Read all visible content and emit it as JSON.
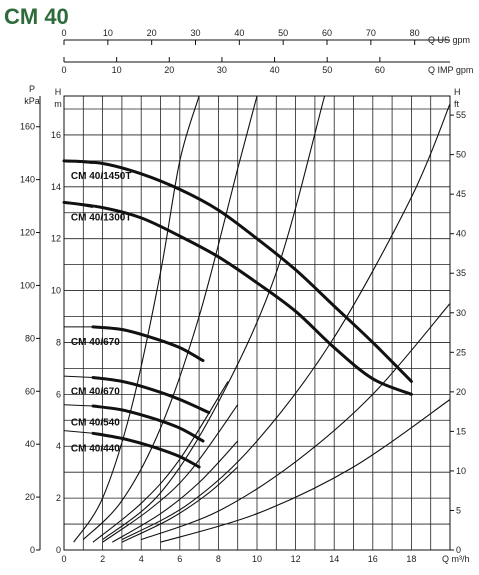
{
  "chart_data": {
    "type": "line",
    "title": "CM 40",
    "x_axis_bottom": {
      "label": "Q m³/h",
      "ticks": [
        0,
        2,
        4,
        6,
        8,
        10,
        12,
        14,
        16,
        18
      ],
      "range": [
        0,
        20
      ]
    },
    "x_axis_top_us": {
      "label": "Q US gpm",
      "ticks": [
        0,
        10,
        20,
        30,
        40,
        50,
        60,
        70,
        80
      ]
    },
    "x_axis_top_imp": {
      "label": "Q IMP gpm",
      "ticks": [
        0,
        10,
        20,
        30,
        40,
        50,
        60
      ]
    },
    "y_axis_left_p": {
      "label_top": "P",
      "label_unit": "kPa",
      "ticks": [
        0,
        20,
        40,
        60,
        80,
        100,
        120,
        140,
        160
      ]
    },
    "y_axis_left_h": {
      "label_top": "H",
      "label_unit": "m",
      "ticks": [
        0,
        2,
        4,
        6,
        8,
        10,
        12,
        14,
        16
      ],
      "range": [
        0,
        17.5
      ]
    },
    "y_axis_right_ft": {
      "label_top": "H",
      "label_unit": "ft",
      "ticks": [
        0,
        5,
        10,
        15,
        20,
        25,
        30,
        35,
        40,
        45,
        50,
        55
      ]
    },
    "grid": true,
    "series": [
      {
        "name": "CM 40/1450T",
        "x": [
          0,
          2,
          4,
          6,
          8,
          10,
          12,
          14,
          16,
          18
        ],
        "y": [
          15.0,
          14.9,
          14.5,
          13.9,
          13.1,
          12.0,
          10.8,
          9.4,
          8.0,
          6.5
        ]
      },
      {
        "name": "CM 40/1300T",
        "x": [
          0,
          2,
          4,
          6,
          8,
          10,
          12,
          14,
          16,
          18
        ],
        "y": [
          13.4,
          13.2,
          12.8,
          12.1,
          11.3,
          10.3,
          9.2,
          7.8,
          6.6,
          6.0
        ]
      },
      {
        "name": "CM 40/670",
        "x": [
          0,
          1.5,
          3,
          4.5,
          6,
          7.2
        ],
        "y": [
          8.6,
          8.6,
          8.5,
          8.2,
          7.8,
          7.3
        ]
      },
      {
        "name": "CM 40/670",
        "x": [
          0,
          1.5,
          3,
          4.5,
          6,
          7.5
        ],
        "y": [
          6.7,
          6.65,
          6.5,
          6.2,
          5.8,
          5.3
        ]
      },
      {
        "name": "CM 40/540",
        "x": [
          0,
          1.5,
          3,
          4.5,
          6,
          7.2
        ],
        "y": [
          5.6,
          5.55,
          5.4,
          5.1,
          4.7,
          4.2
        ]
      },
      {
        "name": "CM 40/440",
        "x": [
          0,
          1.5,
          3,
          4.5,
          6,
          7.0
        ],
        "y": [
          4.6,
          4.5,
          4.3,
          4.0,
          3.6,
          3.2
        ]
      }
    ],
    "system_curves": [
      {
        "x": [
          0.5,
          2.0,
          3.5,
          5.0,
          6.0,
          7.0
        ],
        "y": [
          0.3,
          2.0,
          5.5,
          10.7,
          15.0,
          17.5
        ]
      },
      {
        "x": [
          1.0,
          3.0,
          5.0,
          7.0,
          9.0,
          10.0
        ],
        "y": [
          0.4,
          1.9,
          4.7,
          9.0,
          14.7,
          17.5
        ]
      },
      {
        "x": [
          2.0,
          5.0,
          8.0,
          11.0,
          13.5
        ],
        "y": [
          0.4,
          2.2,
          5.7,
          10.7,
          17.5
        ]
      },
      {
        "x": [
          3.0,
          6.5,
          10.0,
          14.0,
          18.0,
          20.0
        ],
        "y": [
          0.4,
          1.8,
          4.2,
          8.2,
          13.6,
          17.2
        ]
      },
      {
        "x": [
          4.0,
          8.0,
          12.0,
          16.0,
          20.0
        ],
        "y": [
          0.4,
          1.5,
          3.4,
          6.0,
          9.5
        ]
      },
      {
        "x": [
          5.0,
          10.0,
          15.0,
          20.0
        ],
        "y": [
          0.3,
          1.4,
          3.2,
          5.8
        ]
      }
    ],
    "short_system_curves": [
      {
        "x": [
          1.5,
          4.0,
          6.0,
          8.5
        ],
        "y": [
          0.3,
          1.8,
          3.5,
          6.5
        ]
      },
      {
        "x": [
          2.0,
          4.5,
          6.5,
          9.0
        ],
        "y": [
          0.3,
          1.6,
          3.0,
          5.6
        ]
      },
      {
        "x": [
          2.5,
          5.0,
          7.0,
          9.0
        ],
        "y": [
          0.3,
          1.4,
          2.6,
          4.2
        ]
      },
      {
        "x": [
          3.0,
          5.5,
          7.5,
          9.0
        ],
        "y": [
          0.3,
          1.2,
          2.2,
          3.2
        ]
      }
    ]
  }
}
